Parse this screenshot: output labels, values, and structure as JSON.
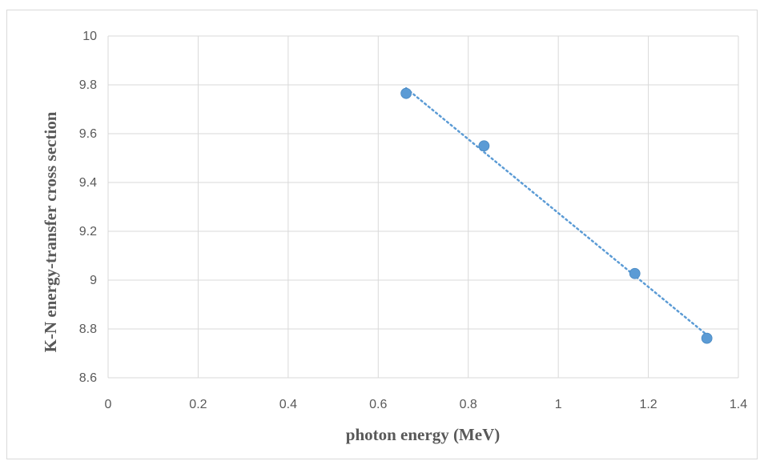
{
  "chart_data": {
    "type": "scatter",
    "title": "",
    "xlabel": "photon energy (MeV)",
    "ylabel": "K-N energy-transfer cross section",
    "xlim": [
      0,
      1.4
    ],
    "ylim": [
      8.6,
      10
    ],
    "xticks": [
      0,
      0.2,
      0.4,
      0.6,
      0.8,
      1,
      1.2,
      1.4
    ],
    "yticks": [
      8.6,
      8.8,
      9,
      9.2,
      9.4,
      9.6,
      9.8,
      10
    ],
    "grid": true,
    "legend": "none",
    "trendline": "linear, dotted",
    "color": "#5b9bd5",
    "series": [
      {
        "x": [
          0.662,
          0.835,
          1.17,
          1.33
        ],
        "y": [
          9.765,
          9.55,
          9.027,
          8.762
        ]
      }
    ]
  }
}
